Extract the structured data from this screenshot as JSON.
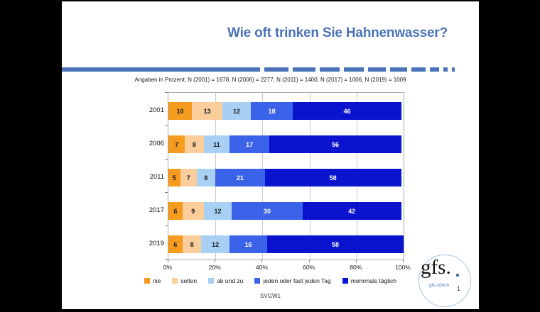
{
  "title": "Wie oft trinken Sie Hahnenwasser?",
  "subtitle": "Angaben in Prozent; N (2001) = 1678, N (2006) = 2277, N (2011) = 1400, N (2017) = 1006, N (2019) = 1009",
  "footer": {
    "code": "SVGW1",
    "page": "1"
  },
  "logo": {
    "text": "gfs.",
    "sub": "gfs-zürich"
  },
  "colors": {
    "title_blue": "#4a73b9",
    "nie": "#F59B1E",
    "selten": "#FACD9B",
    "ab_und_zu": "#A8D0F4",
    "jeden_tag": "#3B63EA",
    "mehrmals": "#0A14CF"
  },
  "chart_data": {
    "type": "bar",
    "stacked": true,
    "orientation": "horizontal",
    "title": "Wie oft trinken Sie Hahnenwasser?",
    "categories": [
      "2001",
      "2006",
      "2011",
      "2017",
      "2019"
    ],
    "series": [
      {
        "name": "nie",
        "color": "#F59B1E",
        "text_color": "#1a1a1a",
        "values": [
          10,
          7,
          5,
          6,
          6
        ]
      },
      {
        "name": "selten",
        "color": "#FACD9B",
        "text_color": "#1a1a1a",
        "values": [
          13,
          8,
          7,
          9,
          8
        ]
      },
      {
        "name": "ab und zu",
        "color": "#A8D0F4",
        "text_color": "#1a1a1a",
        "values": [
          12,
          11,
          8,
          12,
          12
        ]
      },
      {
        "name": "jeden oder fast jeden Tag",
        "color": "#3B63EA",
        "text_color": "#ffffff",
        "values": [
          18,
          17,
          21,
          30,
          16
        ]
      },
      {
        "name": "mehrmals täglich",
        "color": "#0A14CF",
        "text_color": "#ffffff",
        "values": [
          46,
          56,
          58,
          42,
          58
        ]
      }
    ],
    "x_ticks": [
      "0%",
      "20%",
      "40%",
      "60%",
      "80%",
      "100%"
    ],
    "xlim": [
      0,
      100
    ],
    "grid": true,
    "legend_position": "bottom"
  }
}
